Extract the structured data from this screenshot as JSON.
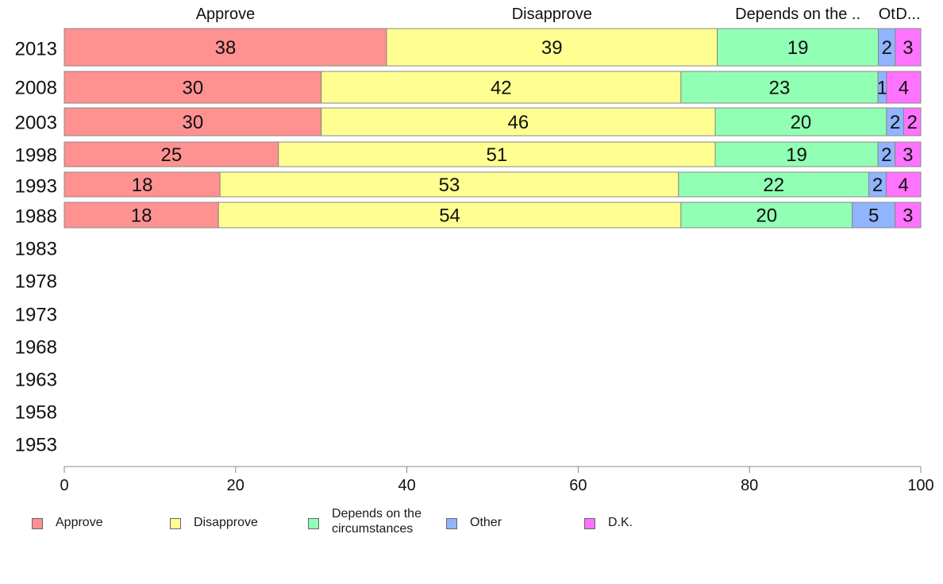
{
  "chart_data": {
    "type": "bar",
    "orientation": "horizontal",
    "stacked": true,
    "categories": [
      "2013",
      "2008",
      "2003",
      "1998",
      "1993",
      "1988",
      "1983",
      "1978",
      "1973",
      "1968",
      "1963",
      "1958",
      "1953"
    ],
    "series": [
      {
        "name": "Approve",
        "header": "Approve",
        "color": "#ff9191",
        "values": [
          38,
          30,
          30,
          25,
          18,
          18,
          null,
          null,
          null,
          null,
          null,
          null,
          null
        ]
      },
      {
        "name": "Disapprove",
        "header": "Disapprove",
        "color": "#ffff91",
        "values": [
          39,
          42,
          46,
          51,
          53,
          54,
          null,
          null,
          null,
          null,
          null,
          null,
          null
        ]
      },
      {
        "name": "Depends on the\ncircumstances",
        "header": "Depends on the ..",
        "color": "#91ffb4",
        "values": [
          19,
          23,
          20,
          19,
          22,
          20,
          null,
          null,
          null,
          null,
          null,
          null,
          null
        ]
      },
      {
        "name": "Other",
        "header": "Ot",
        "color": "#91b4ff",
        "values": [
          2,
          1,
          2,
          2,
          2,
          5,
          null,
          null,
          null,
          null,
          null,
          null,
          null
        ]
      },
      {
        "name": "D.K.",
        "header": "D...",
        "color": "#ff73ff",
        "values": [
          3,
          4,
          2,
          3,
          4,
          3,
          null,
          null,
          null,
          null,
          null,
          null,
          null
        ]
      }
    ],
    "xlim": [
      0,
      100
    ],
    "xticks": [
      "0",
      "20",
      "40",
      "60",
      "80",
      "100"
    ],
    "grid": false,
    "legend_position": "bottom"
  }
}
